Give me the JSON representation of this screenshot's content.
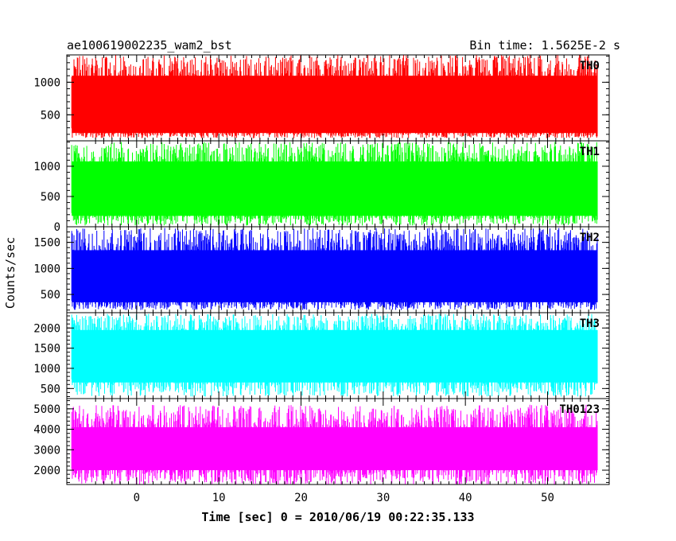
{
  "chart_data": {
    "type": "line",
    "title_left": "ae100619002235_wam2_bst",
    "title_right": "Bin time: 1.5625E-2 s",
    "xlabel": "Time [sec] 0 = 2010/06/19 00:22:35.133",
    "ylabel": "Counts/sec",
    "xlim": [
      -8.5,
      57.5
    ],
    "data_x_range": [
      -7.9,
      56.1
    ],
    "xticks": [
      0,
      10,
      20,
      30,
      40,
      50
    ],
    "grid": false,
    "panels": [
      {
        "name": "TH0",
        "color": "#ff0000",
        "ylim": [
          100,
          1420
        ],
        "yticks": [
          500,
          1000
        ],
        "base": 140,
        "low": 220,
        "high": 1100,
        "peak": 1420
      },
      {
        "name": "TH1",
        "color": "#00ff00",
        "ylim": [
          0,
          1420
        ],
        "yticks": [
          0,
          500,
          1000
        ],
        "base": 20,
        "low": 180,
        "high": 1080,
        "peak": 1400
      },
      {
        "name": "TH2",
        "color": "#0000ff",
        "ylim": [
          150,
          1800
        ],
        "yticks": [
          500,
          1000,
          1500
        ],
        "base": 200,
        "low": 350,
        "high": 1350,
        "peak": 1780
      },
      {
        "name": "TH3",
        "color": "#00ffff",
        "ylim": [
          250,
          2380
        ],
        "yticks": [
          500,
          1000,
          1500,
          2000
        ],
        "base": 300,
        "low": 650,
        "high": 1950,
        "peak": 2350
      },
      {
        "name": "TH0123",
        "color": "#ff00ff",
        "ylim": [
          1300,
          5500
        ],
        "yticks": [
          2000,
          3000,
          4000,
          5000
        ],
        "base": 1300,
        "low": 2000,
        "high": 4100,
        "peak": 5200
      }
    ]
  }
}
